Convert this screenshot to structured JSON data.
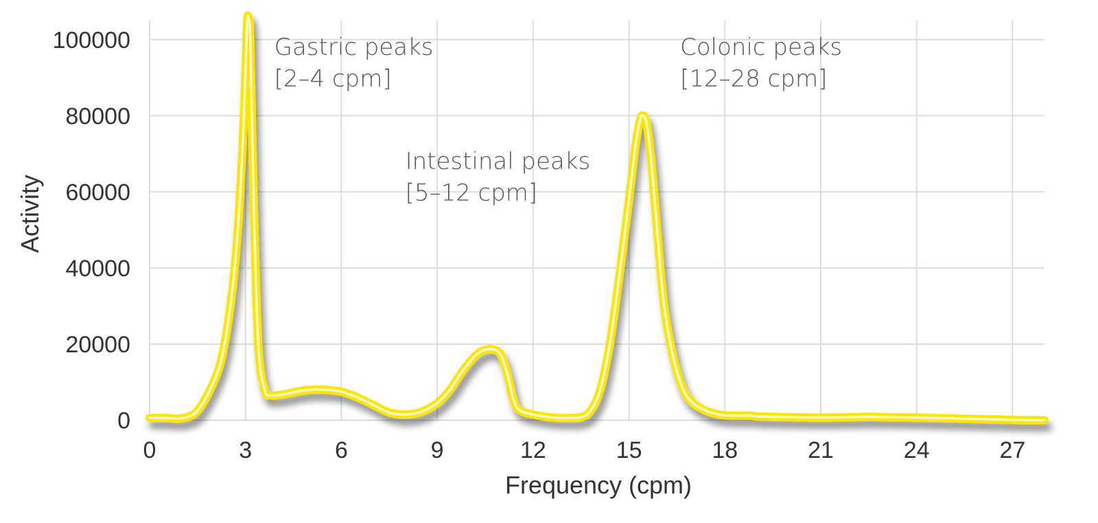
{
  "chart_data": {
    "type": "line",
    "title": "",
    "xlabel": "Frequency (cpm)",
    "ylabel": "Activity",
    "xlim": [
      0,
      28
    ],
    "ylim": [
      0,
      105000
    ],
    "x_ticks": [
      0,
      3,
      6,
      9,
      12,
      15,
      18,
      21,
      24,
      27
    ],
    "y_ticks": [
      0,
      20000,
      40000,
      60000,
      80000,
      100000
    ],
    "grid": true,
    "legend": "none",
    "line_color": "#ffe600",
    "series": [
      {
        "x": [
          0,
          0.5,
          1.0,
          1.5,
          2.0,
          2.3,
          2.6,
          2.8,
          2.95,
          3.05,
          3.1,
          3.15,
          3.25,
          3.4,
          3.6,
          3.8,
          4.2,
          4.6,
          5.0,
          5.5,
          6.0,
          6.5,
          7.0,
          7.5,
          8.0,
          8.5,
          9.0,
          9.4,
          9.8,
          10.2,
          10.5,
          10.8,
          11.0,
          11.2,
          11.4,
          11.6,
          12.0,
          12.5,
          13.0,
          13.5,
          13.8,
          14.1,
          14.4,
          14.7,
          15.0,
          15.2,
          15.35,
          15.45,
          15.55,
          15.7,
          15.9,
          16.1,
          16.4,
          16.7,
          17.0,
          17.4,
          17.8,
          18.2,
          18.8,
          19.0,
          20.0,
          21.0,
          22.0,
          22.5,
          23.0,
          24.0,
          25.0,
          26.0,
          27.0,
          28.0
        ],
        "y": [
          600,
          600,
          500,
          2500,
          10000,
          18000,
          35000,
          55000,
          80000,
          104000,
          105000,
          100000,
          60000,
          20000,
          8000,
          6500,
          6800,
          7500,
          8000,
          8000,
          7500,
          6000,
          4000,
          2000,
          1500,
          2200,
          4500,
          8000,
          13000,
          17000,
          18500,
          18500,
          17000,
          12000,
          5000,
          2500,
          1500,
          800,
          600,
          800,
          2500,
          8000,
          20000,
          38000,
          58000,
          72000,
          79000,
          80000,
          78000,
          68000,
          48000,
          30000,
          16000,
          8000,
          4500,
          2500,
          1500,
          1200,
          1200,
          1000,
          800,
          700,
          800,
          900,
          800,
          700,
          500,
          300,
          100,
          0
        ]
      }
    ],
    "annotations": [
      {
        "lines": [
          "Gastric peaks",
          "[2–4 cpm]"
        ],
        "x": 3.9,
        "y": 96000
      },
      {
        "lines": [
          "Intestinal peaks",
          "[5–12 cpm]"
        ],
        "x": 8.0,
        "y": 66000
      },
      {
        "lines": [
          "Colonic peaks",
          "[12–28 cpm]"
        ],
        "x": 16.6,
        "y": 96000
      }
    ]
  }
}
